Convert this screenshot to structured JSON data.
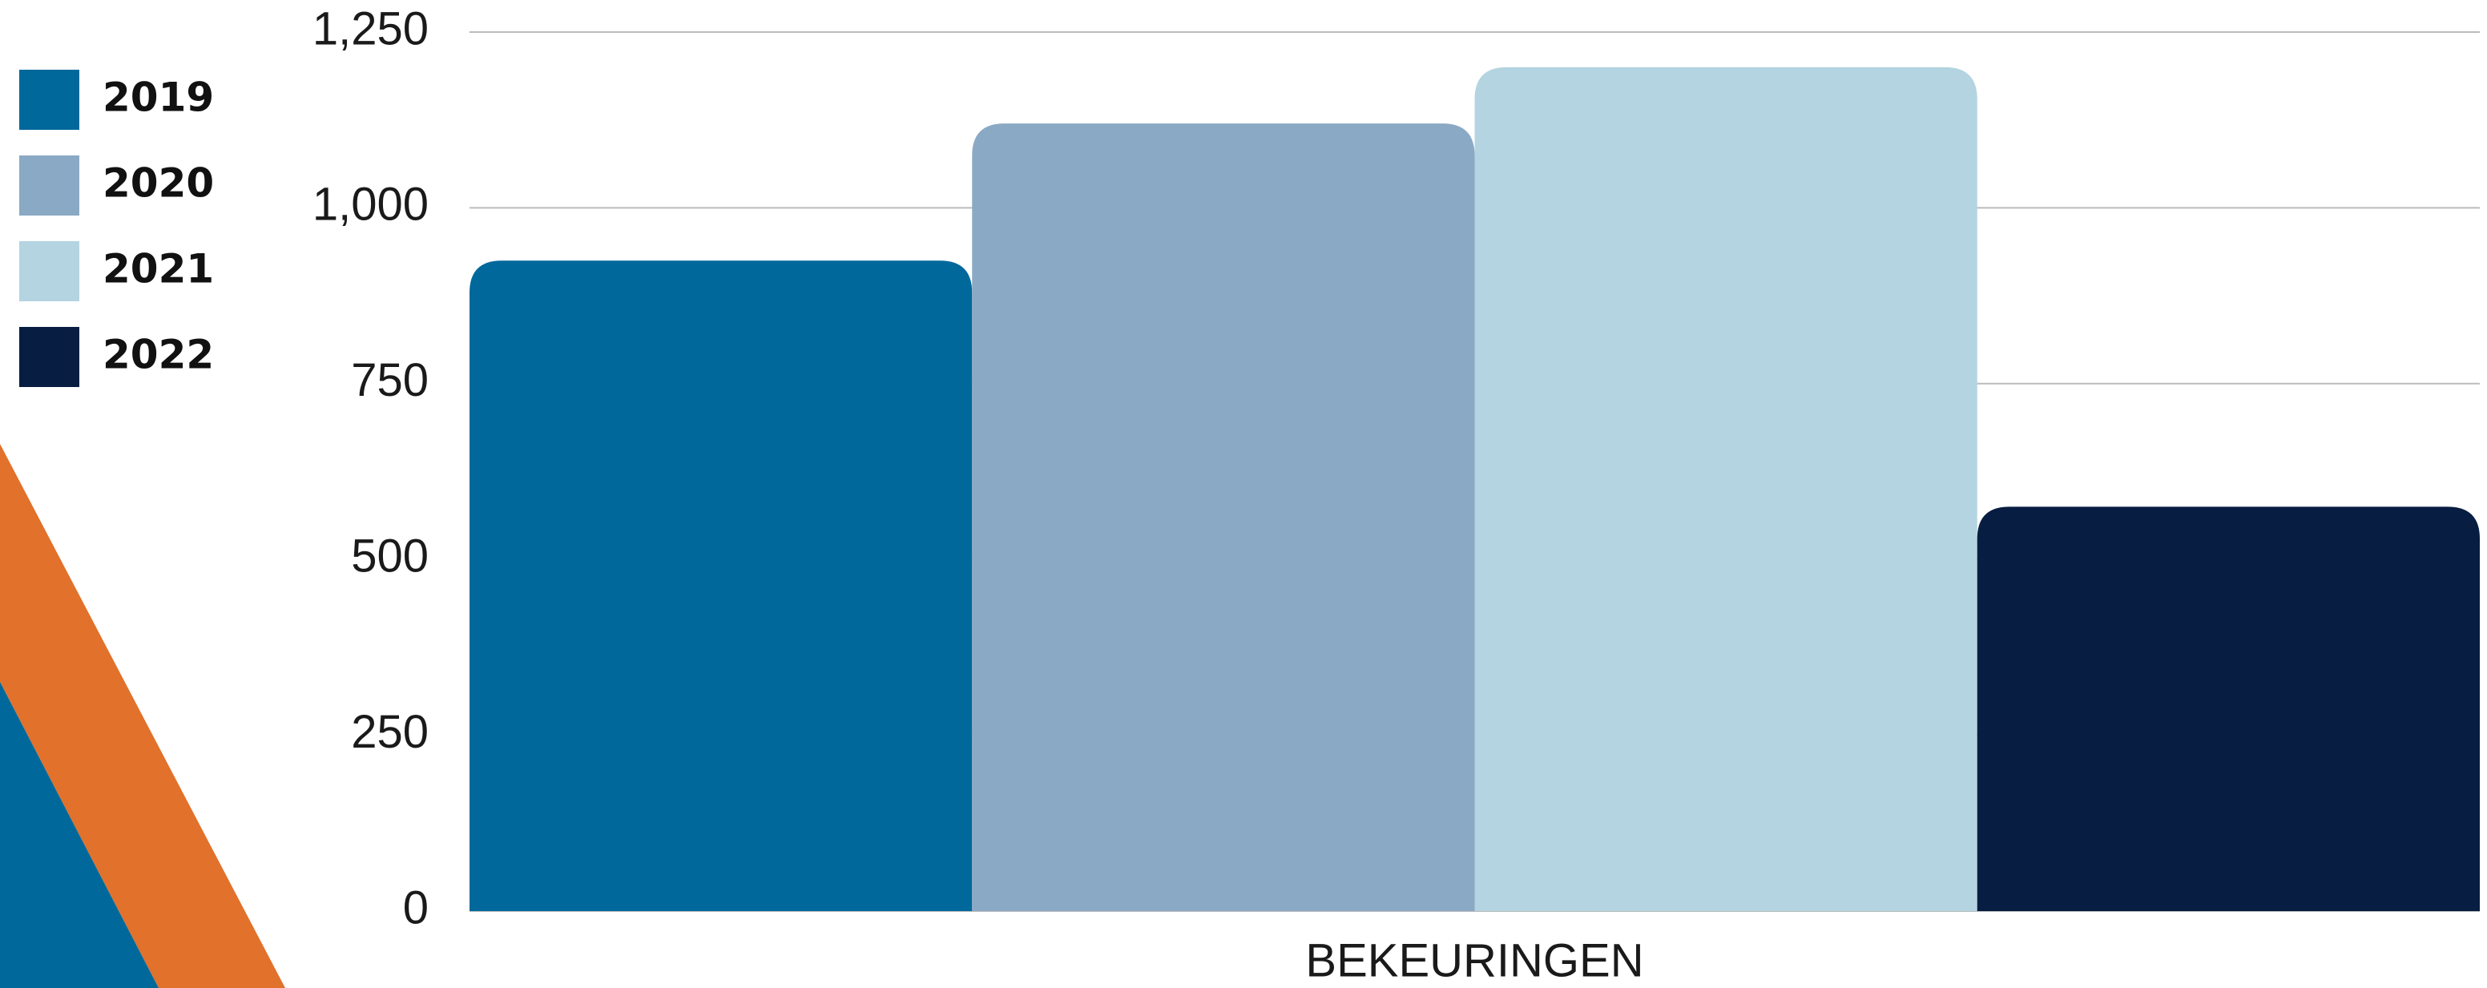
{
  "chart_data": {
    "type": "bar",
    "categories": [
      "BEKEURINGEN"
    ],
    "series": [
      {
        "name": "2019",
        "color": "#01689b",
        "values": [
          925
        ]
      },
      {
        "name": "2020",
        "color": "#8aa9c4",
        "values": [
          1120
        ]
      },
      {
        "name": "2021",
        "color": "#b3d4e0",
        "values": [
          1200
        ]
      },
      {
        "name": "2022",
        "color": "#071d41",
        "values": [
          575
        ]
      }
    ],
    "ylim": [
      0,
      1250
    ],
    "yticks": [
      0,
      250,
      500,
      750,
      {
        "value": 1000,
        "label": "1,000"
      },
      {
        "value": 1250,
        "label": "1,250"
      }
    ],
    "grid": true,
    "legend": "left"
  }
}
